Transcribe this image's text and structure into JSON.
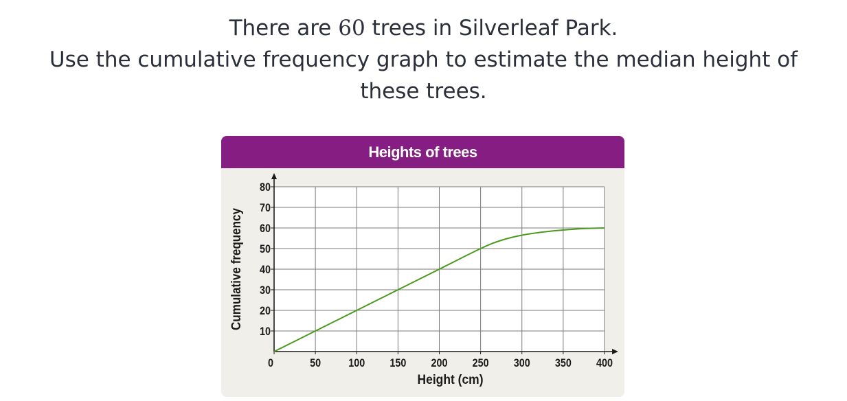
{
  "question": {
    "line1_before": "There are ",
    "line1_number": "60",
    "line1_after": " trees in Silverleaf Park.",
    "line2": "Use the cumulative frequency graph to estimate the median height of",
    "line3": "these trees."
  },
  "chart_data": {
    "type": "line",
    "title": "Heights of trees",
    "xlabel": "Height (cm)",
    "ylabel": "Cumulative frequency",
    "xlim": [
      0,
      400
    ],
    "ylim": [
      0,
      80
    ],
    "x_ticks": [
      0,
      50,
      100,
      150,
      200,
      250,
      300,
      350,
      400
    ],
    "y_ticks": [
      0,
      10,
      20,
      30,
      40,
      50,
      60,
      70,
      80
    ],
    "grid": true,
    "series": [
      {
        "x": [
          0,
          50,
          100,
          150,
          200,
          250,
          275,
          300,
          325,
          350,
          375,
          400
        ],
        "y": [
          0,
          10,
          20,
          30,
          40,
          50,
          54,
          56.5,
          58,
          59,
          59.7,
          60
        ]
      }
    ],
    "colors": {
      "line": "#4a9a1e",
      "grid": "#7a7a7a",
      "header": "#861d82",
      "panel": "#f1efe9"
    }
  }
}
